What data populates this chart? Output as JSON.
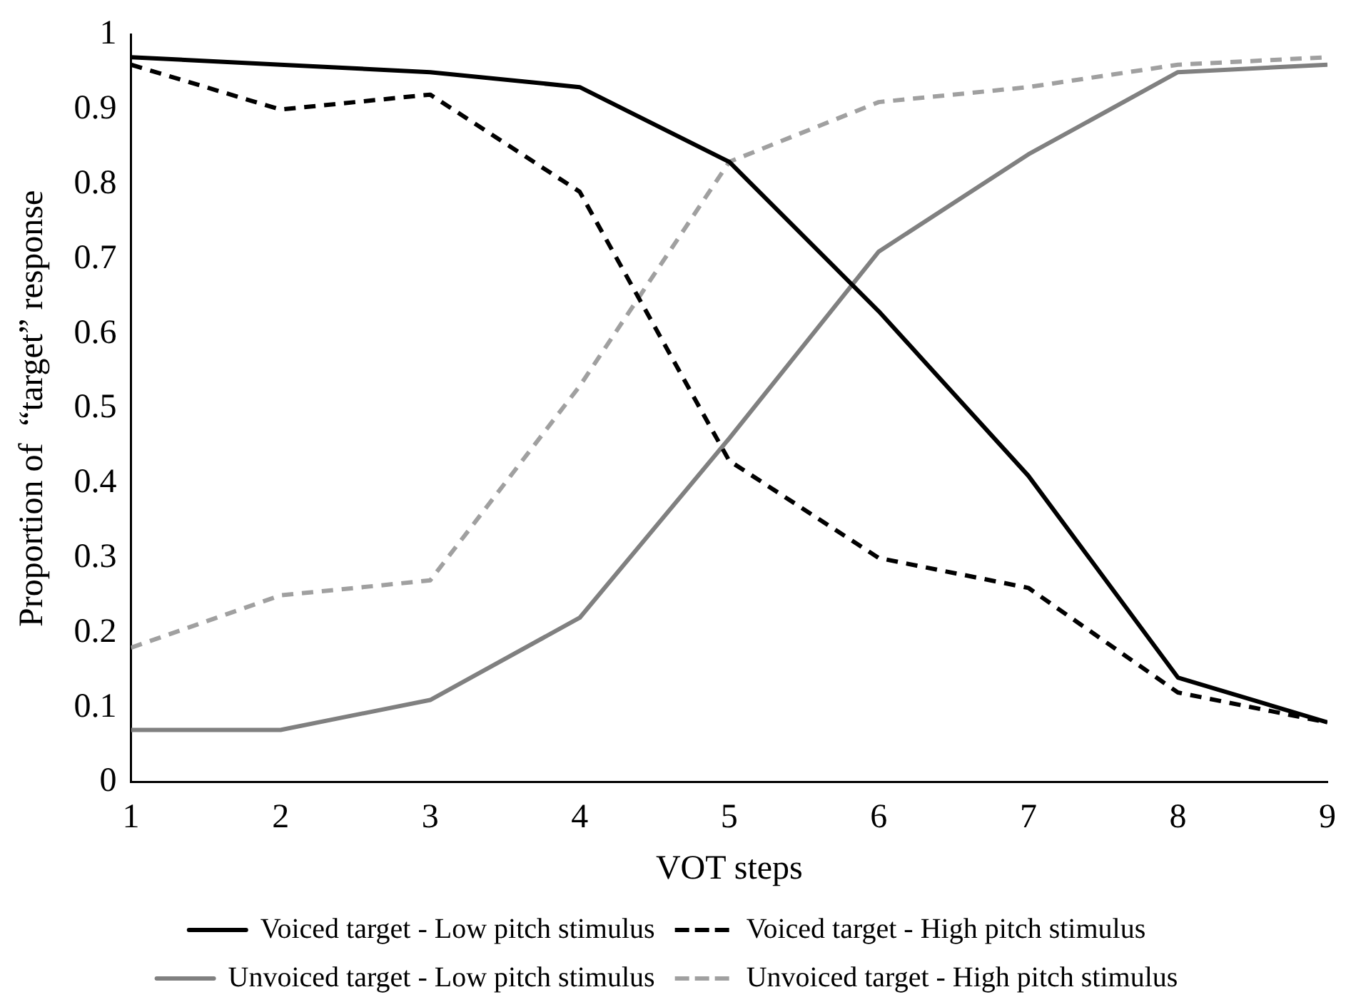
{
  "chart_data": {
    "type": "line",
    "xlabel": "VOT steps",
    "ylabel": "Proportion of  “target” response",
    "x": [
      1,
      2,
      3,
      4,
      5,
      6,
      7,
      8,
      9
    ],
    "series": [
      {
        "name": "Voiced target - Low pitch stimulus",
        "color": "#000000",
        "line_style": "solid",
        "values": [
          0.97,
          0.96,
          0.95,
          0.93,
          0.83,
          0.63,
          0.41,
          0.14,
          0.08
        ]
      },
      {
        "name": "Voiced target - High pitch stimulus",
        "color": "#000000",
        "line_style": "dashed",
        "values": [
          0.96,
          0.9,
          0.92,
          0.79,
          0.43,
          0.3,
          0.26,
          0.12,
          0.08
        ]
      },
      {
        "name": "Unvoiced target - Low pitch stimulus",
        "color": "#808080",
        "line_style": "solid",
        "values": [
          0.07,
          0.07,
          0.11,
          0.22,
          0.46,
          0.71,
          0.84,
          0.95,
          0.96
        ]
      },
      {
        "name": "Unvoiced target - High pitch stimulus",
        "color": "#a0a0a0",
        "line_style": "dashed",
        "values": [
          0.18,
          0.25,
          0.27,
          0.53,
          0.83,
          0.91,
          0.93,
          0.96,
          0.97
        ]
      }
    ],
    "xlim": [
      1,
      9
    ],
    "xticks": [
      1,
      2,
      3,
      4,
      5,
      6,
      7,
      8,
      9
    ],
    "ylim": [
      0,
      1
    ],
    "yticks": [
      0,
      0.1,
      0.2,
      0.3,
      0.4,
      0.5,
      0.6,
      0.7,
      0.8,
      0.9,
      1
    ],
    "grid": false,
    "legend": "bottom",
    "marker": "none"
  }
}
